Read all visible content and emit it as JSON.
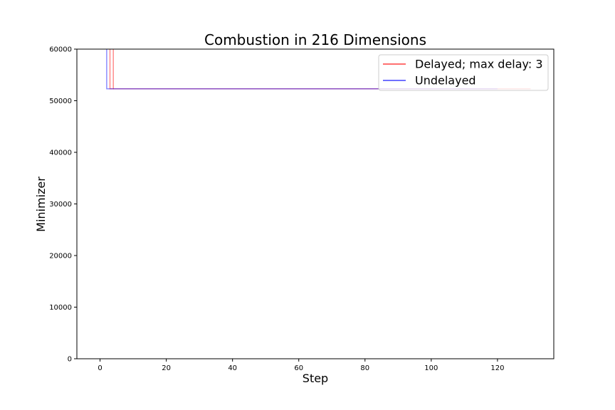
{
  "chart_data": {
    "type": "line",
    "title": "Combustion in 216 Dimensions",
    "xlabel": "Step",
    "ylabel": "Minimizer",
    "xlim": [
      -7,
      137
    ],
    "ylim": [
      0,
      60000
    ],
    "xticks": [
      0,
      20,
      40,
      60,
      80,
      100,
      120
    ],
    "yticks": [
      0,
      10000,
      20000,
      30000,
      40000,
      50000,
      60000
    ],
    "grid": false,
    "legend_position": "top-right",
    "series": [
      {
        "name": "Delayed; max delay: 3",
        "color": "#ff0000",
        "opacity": 0.45,
        "segments": [
          [
            [
              3,
              60000
            ],
            [
              3,
              52300
            ],
            [
              4,
              52300
            ],
            [
              4,
              60000
            ]
          ],
          [
            [
              4,
              52300
            ],
            [
              130,
              52300
            ]
          ]
        ]
      },
      {
        "name": "Undelayed",
        "color": "#0000ff",
        "opacity": 0.45,
        "segments": [
          [
            [
              2,
              60000
            ],
            [
              2,
              52300
            ],
            [
              120,
              52300
            ]
          ]
        ]
      }
    ]
  }
}
